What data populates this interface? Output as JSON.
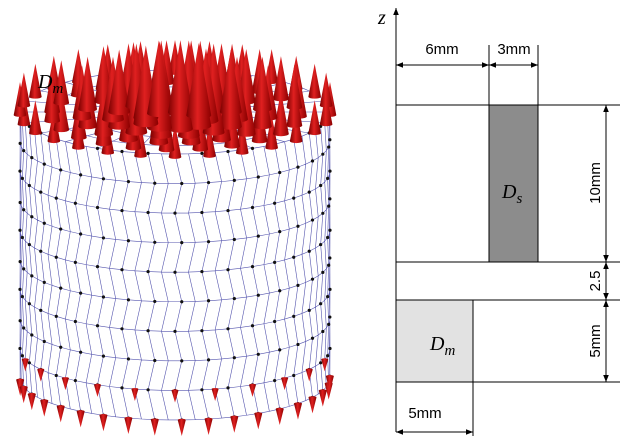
{
  "mesh_label": {
    "base": "D",
    "sub": "m"
  },
  "axis_label": "z",
  "dimensions": {
    "inner_gap": "6mm",
    "shell_width": "3mm",
    "shell_height": "10mm",
    "gap_height": "2.5",
    "magnet_height": "5mm",
    "magnet_radius": "5mm"
  },
  "regions": {
    "shell": {
      "base": "D",
      "sub": "s"
    },
    "magnet": {
      "base": "D",
      "sub": "m"
    }
  }
}
